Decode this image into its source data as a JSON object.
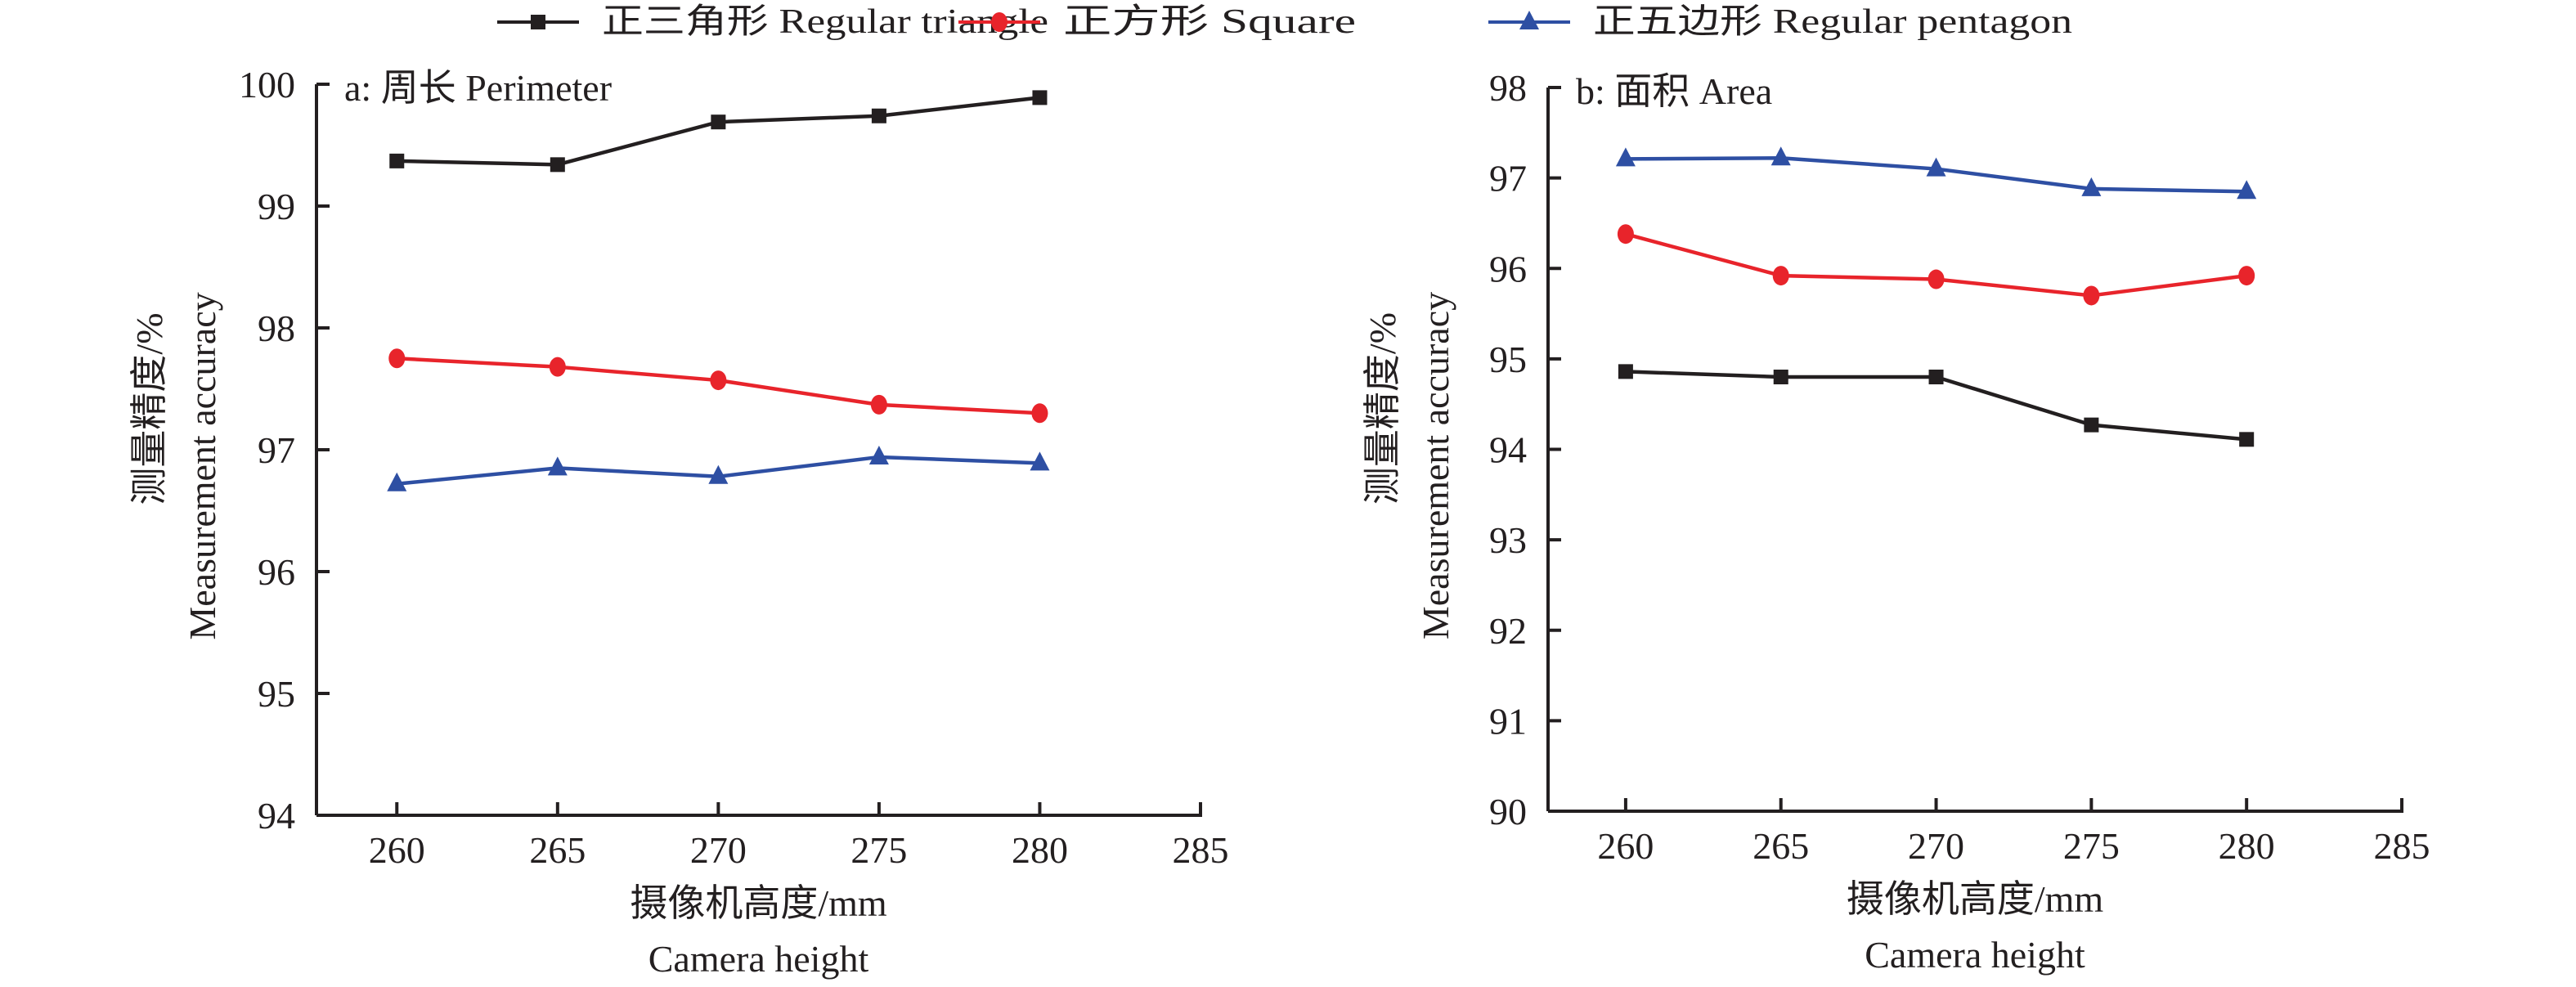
{
  "legend": {
    "items": [
      {
        "label": "正三角形  Regular triangle",
        "color": "#231f20",
        "marker": "square"
      },
      {
        "label": "正方形  Square",
        "color": "#e8242b",
        "marker": "circle"
      },
      {
        "label": "正五边形  Regular pentagon",
        "color": "#2e4fa3",
        "marker": "triangle"
      }
    ]
  },
  "chart_data": [
    {
      "type": "line",
      "title": "a: 周长 Perimeter",
      "xlabel": "摄像机高度/mm",
      "xlabel_en": "Camera height",
      "ylabel": "测量精度/%",
      "ylabel_en": "Measurement accuracy",
      "xlim": [
        257.5,
        285
      ],
      "ylim": [
        94,
        100
      ],
      "xticks": [
        260,
        265,
        270,
        275,
        280,
        285
      ],
      "yticks": [
        94,
        95,
        96,
        97,
        98,
        99,
        100
      ],
      "x": [
        260,
        265,
        270,
        275,
        280
      ],
      "grid": false,
      "series": [
        {
          "name": "正三角形 Regular triangle",
          "color": "#231f20",
          "marker": "square",
          "values": [
            99.37,
            99.34,
            99.69,
            99.74,
            99.89
          ]
        },
        {
          "name": "正方形 Square",
          "color": "#e8242b",
          "marker": "circle",
          "values": [
            97.75,
            97.68,
            97.57,
            97.37,
            97.3
          ]
        },
        {
          "name": "正五边形 Regular pentagon",
          "color": "#2e4fa3",
          "marker": "triangle",
          "values": [
            96.72,
            96.85,
            96.78,
            96.94,
            96.89
          ]
        }
      ]
    },
    {
      "type": "line",
      "title": "b: 面积 Area",
      "xlabel": "摄像机高度/mm",
      "xlabel_en": "Camera height",
      "ylabel": "测量精度/%",
      "ylabel_en": "Measurement accuracy",
      "xlim": [
        257.5,
        285
      ],
      "ylim": [
        90,
        98
      ],
      "xticks": [
        260,
        265,
        270,
        275,
        280,
        285
      ],
      "yticks": [
        90,
        91,
        92,
        93,
        94,
        95,
        96,
        97,
        98
      ],
      "x": [
        260,
        265,
        270,
        275,
        280
      ],
      "grid": false,
      "series": [
        {
          "name": "正三角形 Regular triangle",
          "color": "#231f20",
          "marker": "square",
          "values": [
            94.86,
            94.8,
            94.8,
            94.27,
            94.11
          ]
        },
        {
          "name": "正方形 Square",
          "color": "#e8242b",
          "marker": "circle",
          "values": [
            96.38,
            95.92,
            95.88,
            95.7,
            95.92
          ]
        },
        {
          "name": "正五边形 Regular pentagon",
          "color": "#2e4fa3",
          "marker": "triangle",
          "values": [
            97.21,
            97.22,
            97.1,
            96.88,
            96.85
          ]
        }
      ]
    }
  ]
}
